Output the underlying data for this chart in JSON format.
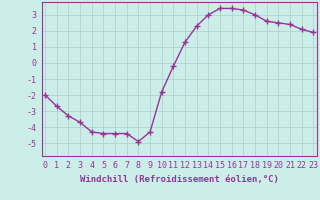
{
  "x": [
    0,
    1,
    2,
    3,
    4,
    5,
    6,
    7,
    8,
    9,
    10,
    11,
    12,
    13,
    14,
    15,
    16,
    17,
    18,
    19,
    20,
    21,
    22,
    23
  ],
  "y": [
    -2.0,
    -2.7,
    -3.3,
    -3.7,
    -4.3,
    -4.4,
    -4.4,
    -4.4,
    -4.9,
    -4.3,
    -1.8,
    -0.2,
    1.3,
    2.3,
    3.0,
    3.4,
    3.4,
    3.3,
    3.0,
    2.6,
    2.5,
    2.4,
    2.1,
    1.9
  ],
  "line_color": "#993399",
  "marker": "+",
  "markersize": 4,
  "linewidth": 1.0,
  "markeredgewidth": 1.0,
  "background_color": "#cceee8",
  "grid_color": "#aacccc",
  "xlabel": "Windchill (Refroidissement éolien,°C)",
  "xlabel_fontsize": 6.5,
  "tick_fontsize": 6.0,
  "ylim": [
    -5.8,
    3.8
  ],
  "xlim": [
    -0.3,
    23.3
  ],
  "yticks": [
    -5,
    -4,
    -3,
    -2,
    -1,
    0,
    1,
    2,
    3
  ],
  "xticks": [
    0,
    1,
    2,
    3,
    4,
    5,
    6,
    7,
    8,
    9,
    10,
    11,
    12,
    13,
    14,
    15,
    16,
    17,
    18,
    19,
    20,
    21,
    22,
    23
  ]
}
